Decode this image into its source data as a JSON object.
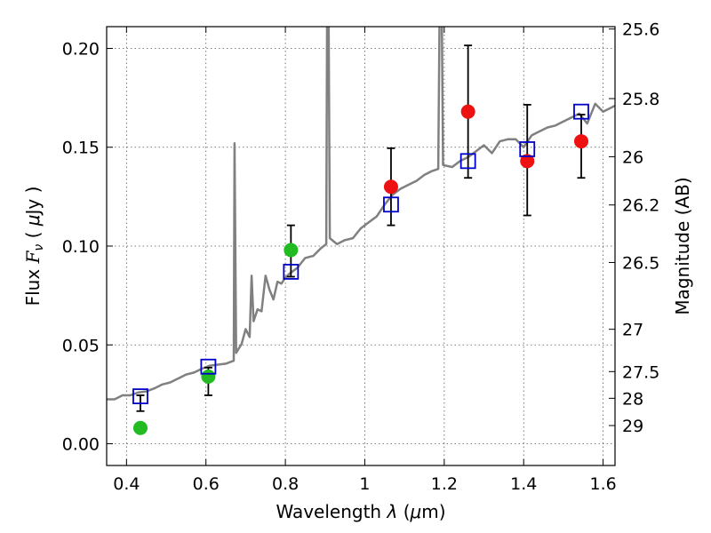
{
  "chart_data": {
    "type": "scatter",
    "xlabel": "Wavelength",
    "xlabel_symbol": "λ",
    "xlabel_unit_prefix": "(",
    "xlabel_unit_mu": "μ",
    "xlabel_unit_rest": "m)",
    "ylabel": "Flux",
    "ylabel_symbol_main": "F",
    "ylabel_symbol_sub": "ν",
    "ylabel_unit_open": "(",
    "ylabel_unit_mu": "μ",
    "ylabel_unit_rest": "Jy",
    "ylabel_unit_close": ")",
    "y2label": "Magnitude (AB)",
    "xlim": [
      0.35,
      1.63
    ],
    "ylim": [
      -0.011,
      0.211
    ],
    "grid": true,
    "x_ticks": [
      0.4,
      0.6,
      0.8,
      1.0,
      1.2,
      1.4,
      1.6
    ],
    "x_tick_labels": [
      "0.4",
      "0.6",
      "0.8",
      "1",
      "1.2",
      "1.4",
      "1.6"
    ],
    "y_ticks": [
      0.0,
      0.05,
      0.1,
      0.15,
      0.2
    ],
    "y_tick_labels": [
      "0.00",
      "0.05",
      "0.10",
      "0.15",
      "0.20"
    ],
    "mag_ticks": [
      {
        "label": "25.6",
        "flux": 0.2098
      },
      {
        "label": "25.8",
        "flux": 0.1746
      },
      {
        "label": "26",
        "flux": 0.1452
      },
      {
        "label": "26.2",
        "flux": 0.1208
      },
      {
        "label": "26.5",
        "flux": 0.0917
      },
      {
        "label": "27",
        "flux": 0.0579
      },
      {
        "label": "27.5",
        "flux": 0.0365
      },
      {
        "label": "28",
        "flux": 0.023
      },
      {
        "label": "29",
        "flux": 0.0092
      }
    ],
    "colors": {
      "model": "#808080",
      "green": "#22bb22",
      "red": "#ee1111",
      "square": "#0000cc",
      "errorbar": "#000000",
      "grid": "#555555"
    },
    "model_spectrum": [
      [
        0.35,
        0.0225
      ],
      [
        0.37,
        0.0225
      ],
      [
        0.39,
        0.0245
      ],
      [
        0.41,
        0.0245
      ],
      [
        0.43,
        0.026
      ],
      [
        0.45,
        0.0265
      ],
      [
        0.47,
        0.028
      ],
      [
        0.49,
        0.03
      ],
      [
        0.51,
        0.031
      ],
      [
        0.53,
        0.033
      ],
      [
        0.55,
        0.035
      ],
      [
        0.57,
        0.036
      ],
      [
        0.59,
        0.038
      ],
      [
        0.61,
        0.0395
      ],
      [
        0.63,
        0.04
      ],
      [
        0.65,
        0.0405
      ],
      [
        0.67,
        0.042
      ],
      [
        0.672,
        0.152
      ],
      [
        0.676,
        0.046
      ],
      [
        0.69,
        0.0505
      ],
      [
        0.7,
        0.058
      ],
      [
        0.71,
        0.054
      ],
      [
        0.715,
        0.085
      ],
      [
        0.72,
        0.062
      ],
      [
        0.73,
        0.068
      ],
      [
        0.74,
        0.067
      ],
      [
        0.75,
        0.085
      ],
      [
        0.76,
        0.078
      ],
      [
        0.77,
        0.073
      ],
      [
        0.78,
        0.082
      ],
      [
        0.79,
        0.081
      ],
      [
        0.8,
        0.084
      ],
      [
        0.81,
        0.086
      ],
      [
        0.83,
        0.089
      ],
      [
        0.85,
        0.094
      ],
      [
        0.87,
        0.095
      ],
      [
        0.89,
        0.099
      ],
      [
        0.903,
        0.101
      ],
      [
        0.905,
        0.212
      ],
      [
        0.909,
        0.212
      ],
      [
        0.912,
        0.104
      ],
      [
        0.93,
        0.101
      ],
      [
        0.95,
        0.103
      ],
      [
        0.97,
        0.104
      ],
      [
        0.99,
        0.109
      ],
      [
        1.01,
        0.112
      ],
      [
        1.03,
        0.115
      ],
      [
        1.05,
        0.121
      ],
      [
        1.07,
        0.126
      ],
      [
        1.09,
        0.129
      ],
      [
        1.11,
        0.131
      ],
      [
        1.13,
        0.133
      ],
      [
        1.15,
        0.136
      ],
      [
        1.17,
        0.138
      ],
      [
        1.185,
        0.139
      ],
      [
        1.188,
        0.212
      ],
      [
        1.194,
        0.212
      ],
      [
        1.197,
        0.141
      ],
      [
        1.22,
        0.14
      ],
      [
        1.24,
        0.143
      ],
      [
        1.26,
        0.145
      ],
      [
        1.28,
        0.148
      ],
      [
        1.3,
        0.151
      ],
      [
        1.32,
        0.147
      ],
      [
        1.34,
        0.153
      ],
      [
        1.36,
        0.154
      ],
      [
        1.38,
        0.154
      ],
      [
        1.4,
        0.15
      ],
      [
        1.42,
        0.156
      ],
      [
        1.44,
        0.158
      ],
      [
        1.46,
        0.16
      ],
      [
        1.48,
        0.161
      ],
      [
        1.5,
        0.163
      ],
      [
        1.52,
        0.165
      ],
      [
        1.54,
        0.167
      ],
      [
        1.56,
        0.162
      ],
      [
        1.58,
        0.172
      ],
      [
        1.6,
        0.168
      ],
      [
        1.63,
        0.171
      ]
    ],
    "observed_points": [
      {
        "x": 0.435,
        "y": 0.008,
        "yerr_low": 0.0165,
        "yerr_high": 0.0245,
        "color": "green"
      },
      {
        "x": 0.606,
        "y": 0.034,
        "yerr_low": 0.0245,
        "yerr_high": 0.0385,
        "color": "green"
      },
      {
        "x": 0.814,
        "y": 0.098,
        "yerr_low": 0.0845,
        "yerr_high": 0.1105,
        "color": "green"
      },
      {
        "x": 1.066,
        "y": 0.13,
        "yerr_low": 0.1105,
        "yerr_high": 0.1495,
        "color": "red"
      },
      {
        "x": 1.26,
        "y": 0.168,
        "yerr_low": 0.1345,
        "yerr_high": 0.2015,
        "color": "red"
      },
      {
        "x": 1.409,
        "y": 0.143,
        "yerr_low": 0.1155,
        "yerr_high": 0.1715,
        "color": "red"
      },
      {
        "x": 1.545,
        "y": 0.153,
        "yerr_low": 0.1345,
        "yerr_high": 0.1665,
        "color": "red"
      }
    ],
    "model_photometry": [
      {
        "x": 0.435,
        "y": 0.024
      },
      {
        "x": 0.606,
        "y": 0.039
      },
      {
        "x": 0.814,
        "y": 0.087
      },
      {
        "x": 1.066,
        "y": 0.121
      },
      {
        "x": 1.26,
        "y": 0.143
      },
      {
        "x": 1.409,
        "y": 0.149
      },
      {
        "x": 1.545,
        "y": 0.168
      }
    ]
  }
}
